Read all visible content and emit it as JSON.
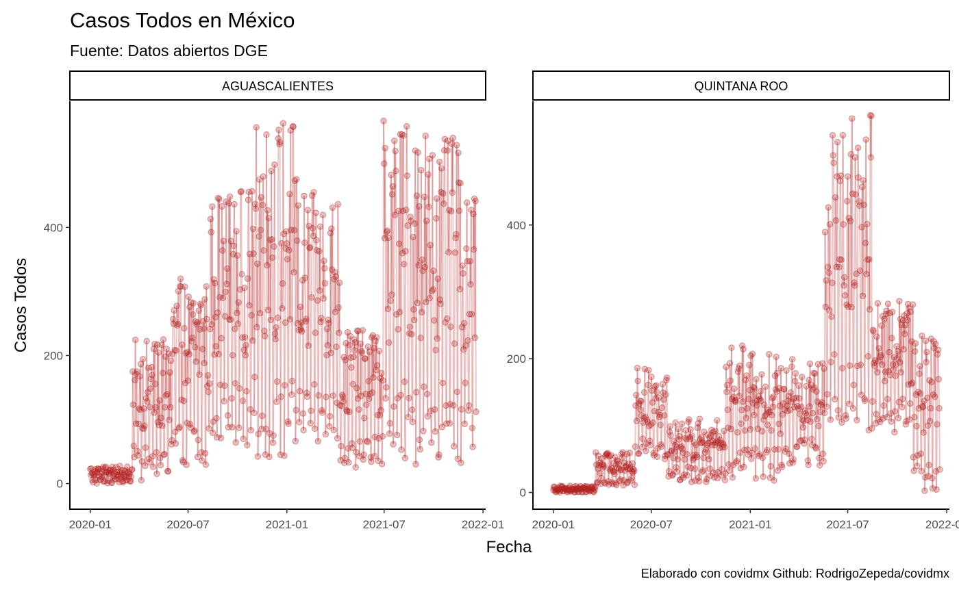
{
  "title": "Casos Todos en México",
  "subtitle": "Fuente: Datos abiertos DGE",
  "xlabel": "Fecha",
  "ylabel": "Casos Todos",
  "caption": "Elaborado con covidmx Github: RodrigoZepeda/covidmx",
  "colors": {
    "point": "#B22222",
    "line": "#B22222"
  },
  "chart_data": [
    {
      "type": "line",
      "panel": "AGUASCALIENTES",
      "y_ticks": [
        0,
        200,
        400
      ],
      "x_ticks": [
        "2020-01",
        "2020-07",
        "2021-01",
        "2021-07",
        "2022-01"
      ],
      "ylim": [
        -40,
        597
      ],
      "xlim": [
        "2019-11-24",
        "2022-01-06"
      ],
      "markers": "points with connecting line, semi-transparent",
      "series": [
        {
          "values": [
            [
              [
                "2020-01-01",
                "2020-03-20"
              ],
              [
                0,
                28
              ]
            ],
            [
              [
                "2020-03-20",
                "2020-05-31"
              ],
              [
                5,
                225
              ]
            ],
            [
              [
                "2020-05-31",
                "2020-08-10"
              ],
              [
                25,
                320
              ]
            ],
            [
              [
                "2020-08-10",
                "2020-10-31"
              ],
              [
                60,
                460
              ]
            ],
            [
              [
                "2020-10-31",
                "2021-01-20"
              ],
              [
                35,
                570
              ]
            ],
            [
              [
                "2021-01-20",
                "2021-04-10"
              ],
              [
                55,
                455
              ]
            ],
            [
              [
                "2021-04-10",
                "2021-06-30"
              ],
              [
                25,
                240
              ]
            ],
            [
              [
                "2021-06-30",
                "2021-09-20"
              ],
              [
                30,
                570
              ]
            ],
            [
              [
                "2021-09-20",
                "2021-12-20"
              ],
              [
                30,
                540
              ]
            ]
          ]
        }
      ]
    },
    {
      "type": "line",
      "panel": "QUINTANA ROO",
      "y_ticks": [
        0,
        200,
        400
      ],
      "x_ticks": [
        "2020-01",
        "2020-07",
        "2021-01",
        "2021-07",
        "2022-01"
      ],
      "ylim": [
        -25,
        585
      ],
      "xlim": [
        "2019-11-24",
        "2022-01-06"
      ],
      "markers": "points with connecting line, semi-transparent",
      "series": [
        {
          "values": [
            [
              [
                "2020-01-01",
                "2020-03-20"
              ],
              [
                0,
                10
              ]
            ],
            [
              [
                "2020-03-20",
                "2020-06-01"
              ],
              [
                10,
                60
              ]
            ],
            [
              [
                "2020-06-01",
                "2020-07-31"
              ],
              [
                50,
                190
              ]
            ],
            [
              [
                "2020-07-31",
                "2020-11-15"
              ],
              [
                15,
                110
              ]
            ],
            [
              [
                "2020-11-15",
                "2021-03-05"
              ],
              [
                15,
                220
              ]
            ],
            [
              [
                "2021-03-05",
                "2021-05-20"
              ],
              [
                40,
                200
              ]
            ],
            [
              [
                "2021-05-20",
                "2021-08-15"
              ],
              [
                90,
                565
              ]
            ],
            [
              [
                "2021-08-15",
                "2021-10-31"
              ],
              [
                90,
                290
              ]
            ],
            [
              [
                "2021-10-31",
                "2021-12-20"
              ],
              [
                0,
                235
              ]
            ]
          ]
        }
      ]
    }
  ]
}
